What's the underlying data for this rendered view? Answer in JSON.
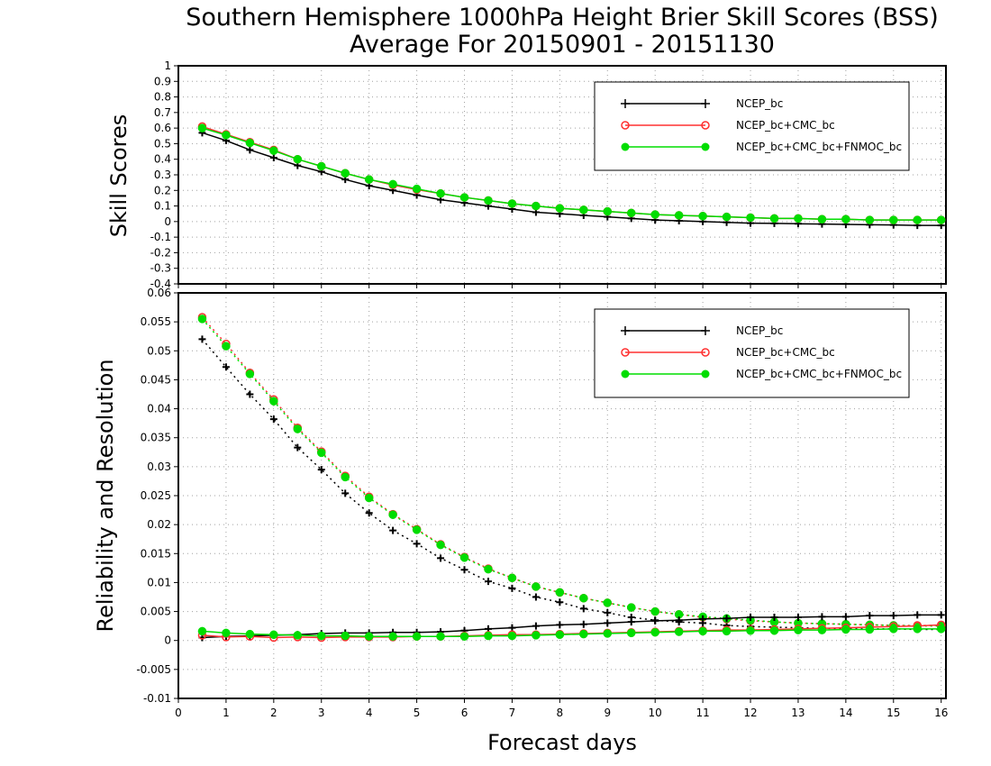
{
  "title_line1": "Southern Hemisphere 1000hPa Height Brier Skill Scores (BSS)",
  "title_line2": "Average For 20150901 - 20151130",
  "xlabel": "Forecast days",
  "legend_entries": [
    "NCEP_bc",
    "NCEP_bc+CMC_bc",
    "NCEP_bc+CMC_bc+FNMOC_bc"
  ],
  "colors": {
    "NCEP_bc": "#000000",
    "NCEP_bc+CMC_bc": "#ff3030",
    "NCEP_bc+CMC_bc+FNMOC_bc": "#00dd00"
  },
  "chart_data": [
    {
      "type": "line",
      "ylabel": "Skill Scores",
      "xlim": [
        0,
        16.1
      ],
      "ylim": [
        -0.4,
        1
      ],
      "xticks": [
        0,
        1,
        2,
        3,
        4,
        5,
        6,
        7,
        8,
        9,
        10,
        11,
        12,
        13,
        14,
        15,
        16
      ],
      "yticks": [
        -0.4,
        -0.3,
        -0.2,
        -0.1,
        0,
        0.1,
        0.2,
        0.3,
        0.4,
        0.5,
        0.6,
        0.7,
        0.8,
        0.9,
        1
      ],
      "grid": true,
      "legend_position": "top-right",
      "x": [
        0.5,
        1,
        1.5,
        2,
        2.5,
        3,
        3.5,
        4,
        4.5,
        5,
        5.5,
        6,
        6.5,
        7,
        7.5,
        8,
        8.5,
        9,
        9.5,
        10,
        10.5,
        11,
        11.5,
        12,
        12.5,
        13,
        13.5,
        14,
        14.5,
        15,
        15.5,
        16
      ],
      "series": [
        {
          "name": "NCEP_bc",
          "marker": "plus",
          "style": "solid",
          "values": [
            0.57,
            0.52,
            0.46,
            0.41,
            0.36,
            0.32,
            0.27,
            0.23,
            0.2,
            0.17,
            0.14,
            0.12,
            0.1,
            0.08,
            0.06,
            0.05,
            0.04,
            0.03,
            0.02,
            0.01,
            0.005,
            0,
            -0.005,
            -0.01,
            -0.012,
            -0.014,
            -0.016,
            -0.018,
            -0.02,
            -0.022,
            -0.025,
            -0.025
          ]
        },
        {
          "name": "NCEP_bc+CMC_bc",
          "marker": "circle-open",
          "style": "solid",
          "values": [
            0.61,
            0.56,
            0.51,
            0.46,
            0.4,
            0.355,
            0.31,
            0.27,
            0.235,
            0.205,
            0.18,
            0.155,
            0.135,
            0.115,
            0.1,
            0.085,
            0.075,
            0.065,
            0.055,
            0.045,
            0.04,
            0.035,
            0.03,
            0.025,
            0.02,
            0.02,
            0.015,
            0.015,
            0.01,
            0.01,
            0.01,
            0.01
          ]
        },
        {
          "name": "NCEP_bc+CMC_bc+FNMOC_bc",
          "marker": "circle-filled",
          "style": "solid",
          "values": [
            0.6,
            0.555,
            0.505,
            0.455,
            0.4,
            0.355,
            0.31,
            0.27,
            0.24,
            0.21,
            0.18,
            0.155,
            0.135,
            0.115,
            0.1,
            0.085,
            0.075,
            0.065,
            0.055,
            0.045,
            0.04,
            0.035,
            0.03,
            0.025,
            0.02,
            0.02,
            0.015,
            0.015,
            0.01,
            0.01,
            0.01,
            0.01
          ]
        }
      ]
    },
    {
      "type": "line",
      "ylabel": "Reliability and Resolution",
      "xlim": [
        0,
        16.1
      ],
      "ylim": [
        -0.01,
        0.06
      ],
      "xticks": [
        0,
        1,
        2,
        3,
        4,
        5,
        6,
        7,
        8,
        9,
        10,
        11,
        12,
        13,
        14,
        15,
        16
      ],
      "yticks": [
        -0.01,
        -0.005,
        0,
        0.005,
        0.01,
        0.015,
        0.02,
        0.025,
        0.03,
        0.035,
        0.04,
        0.045,
        0.05,
        0.055,
        0.06
      ],
      "grid": true,
      "legend_position": "top-right",
      "x": [
        0.5,
        1,
        1.5,
        2,
        2.5,
        3,
        3.5,
        4,
        4.5,
        5,
        5.5,
        6,
        6.5,
        7,
        7.5,
        8,
        8.5,
        9,
        9.5,
        10,
        10.5,
        11,
        11.5,
        12,
        12.5,
        13,
        13.5,
        14,
        14.5,
        15,
        15.5,
        16
      ],
      "series": [
        {
          "name": "NCEP_bc",
          "component": "resolution",
          "marker": "plus",
          "style": "dotted",
          "values": [
            0.052,
            0.0472,
            0.0425,
            0.0382,
            0.0333,
            0.0295,
            0.0254,
            0.022,
            0.019,
            0.0167,
            0.0142,
            0.0122,
            0.0102,
            0.009,
            0.0075,
            0.0066,
            0.0055,
            0.0048,
            0.004,
            0.0035,
            0.0032,
            0.003,
            0.0026,
            0.0024,
            0.0023,
            0.0022,
            0.0021,
            0.002,
            0.002,
            0.002,
            0.0019,
            0.0019
          ]
        },
        {
          "name": "NCEP_bc+CMC_bc",
          "component": "resolution",
          "marker": "circle-open",
          "style": "dotted",
          "values": [
            0.0558,
            0.0512,
            0.0462,
            0.0416,
            0.0367,
            0.0326,
            0.0284,
            0.0248,
            0.0218,
            0.0192,
            0.0166,
            0.0144,
            0.0124,
            0.0108,
            0.0093,
            0.0083,
            0.0073,
            0.0065,
            0.0057,
            0.005,
            0.0045,
            0.004,
            0.0037,
            0.0034,
            0.0032,
            0.003,
            0.0029,
            0.0028,
            0.0027,
            0.0026,
            0.0026,
            0.0026
          ]
        },
        {
          "name": "NCEP_bc+CMC_bc+FNMOC_bc",
          "component": "resolution",
          "marker": "circle-filled",
          "style": "dotted",
          "values": [
            0.0555,
            0.0508,
            0.046,
            0.0413,
            0.0365,
            0.0324,
            0.0282,
            0.0246,
            0.0217,
            0.0191,
            0.0165,
            0.0143,
            0.0123,
            0.0108,
            0.0093,
            0.0083,
            0.0073,
            0.0065,
            0.0057,
            0.005,
            0.0045,
            0.0041,
            0.0038,
            0.0035,
            0.0032,
            0.003,
            0.0029,
            0.0028,
            0.0027,
            0.0026,
            0.0025,
            0.0025
          ]
        },
        {
          "name": "NCEP_bc",
          "component": "reliability",
          "marker": "plus",
          "style": "solid",
          "values": [
            0.0005,
            0.0007,
            0.0008,
            0.0009,
            0.001,
            0.0012,
            0.0013,
            0.0013,
            0.0014,
            0.0014,
            0.0015,
            0.0017,
            0.002,
            0.0022,
            0.0025,
            0.0027,
            0.0028,
            0.003,
            0.0032,
            0.0034,
            0.0035,
            0.0037,
            0.0038,
            0.004,
            0.004,
            0.004,
            0.0041,
            0.0041,
            0.0043,
            0.0043,
            0.0044,
            0.0044
          ]
        },
        {
          "name": "NCEP_bc+CMC_bc",
          "component": "reliability",
          "marker": "circle-open",
          "style": "solid",
          "values": [
            0.0009,
            0.0006,
            0.0007,
            0.0005,
            0.0006,
            0.0005,
            0.0006,
            0.0006,
            0.0006,
            0.0007,
            0.0007,
            0.0008,
            0.0009,
            0.001,
            0.001,
            0.0011,
            0.0012,
            0.0013,
            0.0014,
            0.0015,
            0.0016,
            0.0017,
            0.0018,
            0.0018,
            0.0019,
            0.002,
            0.0021,
            0.0022,
            0.0023,
            0.0024,
            0.0025,
            0.0027
          ]
        },
        {
          "name": "NCEP_bc+CMC_bc+FNMOC_bc",
          "component": "reliability",
          "marker": "circle-filled",
          "style": "solid",
          "values": [
            0.0016,
            0.0013,
            0.0011,
            0.001,
            0.0009,
            0.0008,
            0.0008,
            0.0007,
            0.0007,
            0.0007,
            0.0007,
            0.0007,
            0.0008,
            0.0008,
            0.0009,
            0.001,
            0.0011,
            0.0012,
            0.0013,
            0.0014,
            0.0015,
            0.0016,
            0.0016,
            0.0017,
            0.0017,
            0.0018,
            0.0018,
            0.0019,
            0.0019,
            0.002,
            0.002,
            0.002
          ]
        }
      ]
    }
  ]
}
